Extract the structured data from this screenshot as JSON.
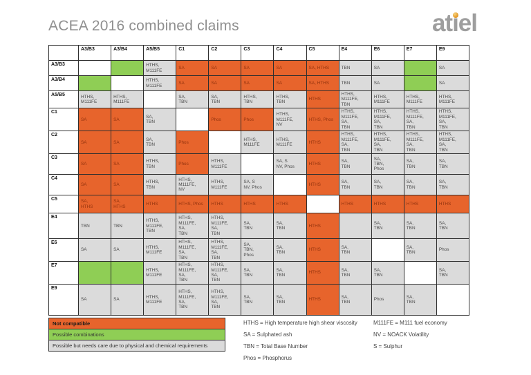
{
  "page": {
    "title": "ACEA 2016 combined claims"
  },
  "logo": {
    "text": "atiel",
    "dot_color": "#E09423",
    "text_color": "#9E9E9E"
  },
  "colors": {
    "not_compatible": "#E7642C",
    "possible_combinations": "#8FCE55",
    "needs_care": "#DBDBDB"
  },
  "matrix": {
    "columns": [
      "A3/B3",
      "A3/B4",
      "A5/B5",
      "C1",
      "C2",
      "C3",
      "C4",
      "C5",
      "E4",
      "E6",
      "E7",
      "E9"
    ],
    "rows": [
      {
        "label": "A3/B3",
        "cells": [
          {
            "t": "",
            "c": "white"
          },
          {
            "t": "",
            "c": "green"
          },
          {
            "t": "HTHS,\nM111FE",
            "c": "gray"
          },
          {
            "t": "SA",
            "c": "orange"
          },
          {
            "t": "SA",
            "c": "orange"
          },
          {
            "t": "SA",
            "c": "orange"
          },
          {
            "t": "SA",
            "c": "orange"
          },
          {
            "t": "SA, HTHS",
            "c": "orange"
          },
          {
            "t": "TBN",
            "c": "gray"
          },
          {
            "t": "SA",
            "c": "gray"
          },
          {
            "t": "",
            "c": "green"
          },
          {
            "t": "SA",
            "c": "gray"
          }
        ]
      },
      {
        "label": "A3/B4",
        "cells": [
          {
            "t": "",
            "c": "green"
          },
          {
            "t": "",
            "c": "white"
          },
          {
            "t": "HTHS,\nM111FE",
            "c": "gray"
          },
          {
            "t": "SA",
            "c": "orange"
          },
          {
            "t": "SA",
            "c": "orange"
          },
          {
            "t": "SA",
            "c": "orange"
          },
          {
            "t": "SA",
            "c": "orange"
          },
          {
            "t": "SA, HTHS",
            "c": "orange"
          },
          {
            "t": "TBN",
            "c": "gray"
          },
          {
            "t": "SA",
            "c": "gray"
          },
          {
            "t": "",
            "c": "green"
          },
          {
            "t": "SA",
            "c": "gray"
          }
        ]
      },
      {
        "label": "A5/B5",
        "cells": [
          {
            "t": "HTHS,\nM111FE",
            "c": "gray"
          },
          {
            "t": "HTHS,\nM111FE",
            "c": "gray"
          },
          {
            "t": "",
            "c": "white"
          },
          {
            "t": "SA,\nTBN",
            "c": "gray"
          },
          {
            "t": "SA,\nTBN",
            "c": "gray"
          },
          {
            "t": "HTHS,\nTBN",
            "c": "gray"
          },
          {
            "t": "HTHS,\nTBN",
            "c": "gray"
          },
          {
            "t": "HTHS",
            "c": "orange"
          },
          {
            "t": "HTHS,\nM111FE,\nTBN",
            "c": "gray"
          },
          {
            "t": "HTHS,\nM111FE",
            "c": "gray"
          },
          {
            "t": "HTHS,\nM111FE",
            "c": "gray"
          },
          {
            "t": "HTHS,\nM111FE",
            "c": "gray"
          }
        ]
      },
      {
        "label": "C1",
        "cells": [
          {
            "t": "SA",
            "c": "orange"
          },
          {
            "t": "SA",
            "c": "orange"
          },
          {
            "t": "SA,\nTBN",
            "c": "gray"
          },
          {
            "t": "",
            "c": "white"
          },
          {
            "t": "Phos",
            "c": "orange"
          },
          {
            "t": "Phos",
            "c": "orange"
          },
          {
            "t": "HTHS,\nM111FE,\nNV",
            "c": "gray"
          },
          {
            "t": "HTHS, Phos",
            "c": "orange"
          },
          {
            "t": "HTHS,\nM111FE,\nSA,\nTBN",
            "c": "gray"
          },
          {
            "t": "HTHS,\nM111FE,\nSA,\nTBN",
            "c": "gray"
          },
          {
            "t": "HTHS,\nM111FE,\nSA,\nTBN",
            "c": "gray"
          },
          {
            "t": "HTHS,\nM111FE,\nSA,\nTBN",
            "c": "gray"
          }
        ]
      },
      {
        "label": "C2",
        "cells": [
          {
            "t": "SA",
            "c": "orange"
          },
          {
            "t": "SA",
            "c": "orange"
          },
          {
            "t": "SA,\nTBN",
            "c": "gray"
          },
          {
            "t": "Phos",
            "c": "orange"
          },
          {
            "t": "",
            "c": "white"
          },
          {
            "t": "HTHS,\nM111FE",
            "c": "gray"
          },
          {
            "t": "HTHS,\nM111FE",
            "c": "gray"
          },
          {
            "t": "HTHS",
            "c": "orange"
          },
          {
            "t": "HTHS,\nM111FE,\nSA,\nTBN",
            "c": "gray"
          },
          {
            "t": "HTHS,\nM111FE,\nSA,\nTBN",
            "c": "gray"
          },
          {
            "t": "HTHS,\nM111FE,\nSA,\nTBN",
            "c": "gray"
          },
          {
            "t": "HTHS,\nM111FE,\nSA,\nTBN",
            "c": "gray"
          }
        ]
      },
      {
        "label": "C3",
        "cells": [
          {
            "t": "SA",
            "c": "orange"
          },
          {
            "t": "SA",
            "c": "orange"
          },
          {
            "t": "HTHS,\nTBN",
            "c": "gray"
          },
          {
            "t": "Phos",
            "c": "orange"
          },
          {
            "t": "HTHS,\nM111FE",
            "c": "gray"
          },
          {
            "t": "",
            "c": "white"
          },
          {
            "t": "SA, S\nNV, Phos",
            "c": "gray"
          },
          {
            "t": "HTHS",
            "c": "orange"
          },
          {
            "t": "SA,\nTBN",
            "c": "gray"
          },
          {
            "t": "SA,\nTBN,\nPhos",
            "c": "gray"
          },
          {
            "t": "SA,\nTBN",
            "c": "gray"
          },
          {
            "t": "SA,\nTBN",
            "c": "gray"
          }
        ]
      },
      {
        "label": "C4",
        "cells": [
          {
            "t": "SA",
            "c": "orange"
          },
          {
            "t": "SA",
            "c": "orange"
          },
          {
            "t": "HTHS,\nTBN",
            "c": "gray"
          },
          {
            "t": "HTHS,\nM111FE,\nNV",
            "c": "gray"
          },
          {
            "t": "HTHS,\nM111FE",
            "c": "gray"
          },
          {
            "t": "SA, S\nNV, Phos",
            "c": "gray"
          },
          {
            "t": "",
            "c": "white"
          },
          {
            "t": "HTHS",
            "c": "orange"
          },
          {
            "t": "SA,\nTBN",
            "c": "gray"
          },
          {
            "t": "SA,\nTBN",
            "c": "gray"
          },
          {
            "t": "SA,\nTBN",
            "c": "gray"
          },
          {
            "t": "SA,\nTBN",
            "c": "gray"
          }
        ]
      },
      {
        "label": "C5",
        "cells": [
          {
            "t": "SA,\nHTHS",
            "c": "orange"
          },
          {
            "t": "SA,\nHTHS",
            "c": "orange"
          },
          {
            "t": "HTHS",
            "c": "orange"
          },
          {
            "t": "HTHS, Phos",
            "c": "orange"
          },
          {
            "t": "HTHS",
            "c": "orange"
          },
          {
            "t": "HTHS",
            "c": "orange"
          },
          {
            "t": "HTHS",
            "c": "orange"
          },
          {
            "t": "",
            "c": "white"
          },
          {
            "t": "HTHS",
            "c": "orange"
          },
          {
            "t": "HTHS",
            "c": "orange"
          },
          {
            "t": "HTHS",
            "c": "orange"
          },
          {
            "t": "HTHS",
            "c": "orange"
          }
        ]
      },
      {
        "label": "E4",
        "cells": [
          {
            "t": "TBN",
            "c": "gray"
          },
          {
            "t": "TBN",
            "c": "gray"
          },
          {
            "t": "HTHS,\nM111FE,\nTBN",
            "c": "gray"
          },
          {
            "t": "HTHS,\nM111FE,\nSA,\nTBN",
            "c": "gray"
          },
          {
            "t": "HTHS,\nM111FE,\nSA,\nTBN",
            "c": "gray"
          },
          {
            "t": "SA,\nTBN",
            "c": "gray"
          },
          {
            "t": "SA,\nTBN",
            "c": "gray"
          },
          {
            "t": "HTHS",
            "c": "orange"
          },
          {
            "t": "",
            "c": "gray"
          },
          {
            "t": "SA,\nTBN",
            "c": "gray"
          },
          {
            "t": "SA,\nTBN",
            "c": "gray"
          },
          {
            "t": "SA,\nTBN",
            "c": "gray"
          }
        ]
      },
      {
        "label": "E6",
        "cells": [
          {
            "t": "SA",
            "c": "gray"
          },
          {
            "t": "SA",
            "c": "gray"
          },
          {
            "t": "HTHS,\nM111FE",
            "c": "gray"
          },
          {
            "t": "HTHS,\nM111FE,\nSA,\nTBN",
            "c": "gray"
          },
          {
            "t": "HTHS,\nM111FE,\nSA,\nTBN",
            "c": "gray"
          },
          {
            "t": "SA,\nTBN,\nPhos",
            "c": "gray"
          },
          {
            "t": "SA,\nTBN",
            "c": "gray"
          },
          {
            "t": "HTHS",
            "c": "orange"
          },
          {
            "t": "SA,\nTBN",
            "c": "gray"
          },
          {
            "t": "",
            "c": "white"
          },
          {
            "t": "SA,\nTBN",
            "c": "gray"
          },
          {
            "t": "Phos",
            "c": "gray"
          }
        ]
      },
      {
        "label": "E7",
        "cells": [
          {
            "t": "",
            "c": "green"
          },
          {
            "t": "",
            "c": "green"
          },
          {
            "t": "HTHS,\nM111FE",
            "c": "gray"
          },
          {
            "t": "HTHS,\nM111FE,\nSA,\nTBN",
            "c": "gray"
          },
          {
            "t": "HTHS,\nM111FE,\nSA,\nTBN",
            "c": "gray"
          },
          {
            "t": "SA,\nTBN",
            "c": "gray"
          },
          {
            "t": "SA,\nTBN",
            "c": "gray"
          },
          {
            "t": "HTHS",
            "c": "orange"
          },
          {
            "t": "SA,\nTBN",
            "c": "gray"
          },
          {
            "t": "SA,\nTBN",
            "c": "gray"
          },
          {
            "t": "",
            "c": "white"
          },
          {
            "t": "SA,\nTBN",
            "c": "gray"
          }
        ]
      },
      {
        "label": "E9",
        "cells": [
          {
            "t": "SA",
            "c": "gray"
          },
          {
            "t": "SA",
            "c": "gray"
          },
          {
            "t": "HTHS,\nM111FE",
            "c": "gray"
          },
          {
            "t": "HTHS,\nM111FE,\nSA,\nTBN",
            "c": "gray"
          },
          {
            "t": "HTHS,\nM111FE,\nSA,\nTBN",
            "c": "gray"
          },
          {
            "t": "SA,\nTBN",
            "c": "gray"
          },
          {
            "t": "SA,\nTBN",
            "c": "gray"
          },
          {
            "t": "HTHS",
            "c": "orange"
          },
          {
            "t": "SA,\nTBN",
            "c": "gray"
          },
          {
            "t": "Phos",
            "c": "gray"
          },
          {
            "t": "SA,\nTBN",
            "c": "gray"
          },
          {
            "t": "",
            "c": "white"
          }
        ]
      }
    ]
  },
  "legend": {
    "items": [
      {
        "label": "Not compatible",
        "color": "orange"
      },
      {
        "label": "Possible combinations",
        "color": "green"
      },
      {
        "label": "Possible but needs care due to physical and chemical requirements",
        "color": "gray"
      }
    ]
  },
  "abbreviations": {
    "col1": [
      "HTHS = High temperature high shear viscosity",
      "SA = Sulphated ash",
      "TBN = Total Base Number",
      "Phos = Phosphorus"
    ],
    "col2": [
      "M111FE = M111 fuel economy",
      "NV = NOACK Volatility",
      "S = Sulphur"
    ]
  }
}
